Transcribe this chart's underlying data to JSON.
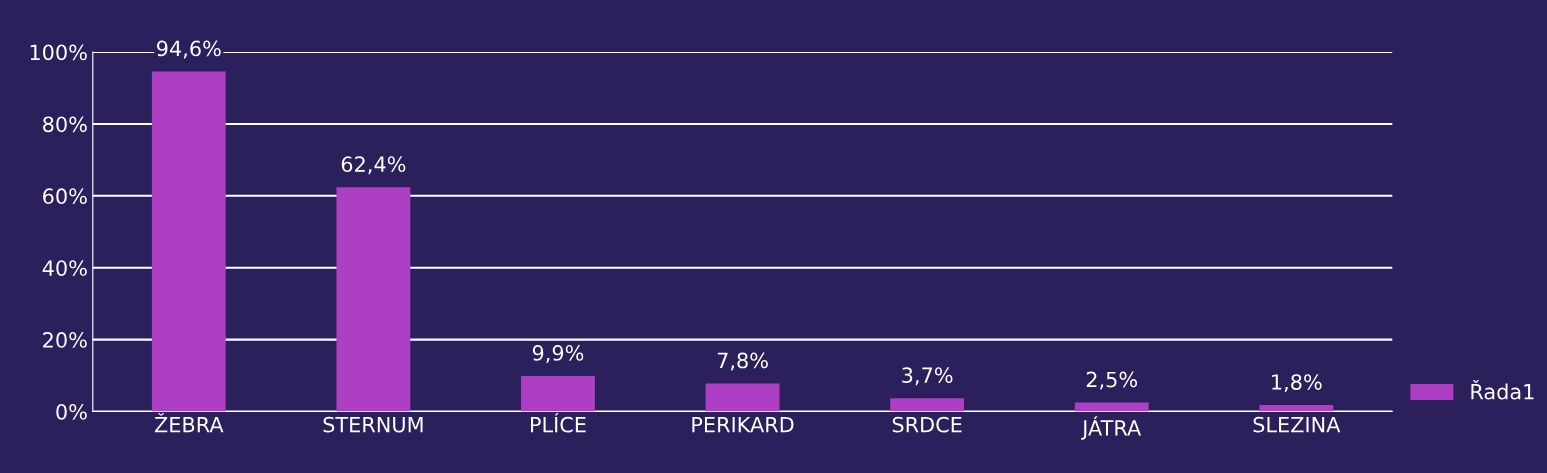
{
  "chart_data": {
    "type": "bar",
    "categories": [
      "ŽEBRA",
      "STERNUM",
      "PLÍCE",
      "PERIKARD",
      "SRDCE",
      "JÁTRA",
      "SLEZINA"
    ],
    "series": [
      {
        "name": "Řada1",
        "color": "#ad3fc5",
        "values": [
          94.6,
          62.4,
          9.9,
          7.8,
          3.7,
          2.5,
          1.8
        ],
        "value_labels": [
          "94,6%",
          "62,4%",
          "9,9%",
          "7,8%",
          "3,7%",
          "2,5%",
          "1,8%"
        ]
      }
    ],
    "ylim": [
      0,
      100
    ],
    "yticks": [
      {
        "value": 0,
        "label": "0%"
      },
      {
        "value": 20,
        "label": "20%"
      },
      {
        "value": 40,
        "label": "40%"
      },
      {
        "value": 60,
        "label": "60%"
      },
      {
        "value": 80,
        "label": "80%"
      },
      {
        "value": 100,
        "label": "100%"
      }
    ],
    "grid": "y",
    "legend": "right"
  }
}
